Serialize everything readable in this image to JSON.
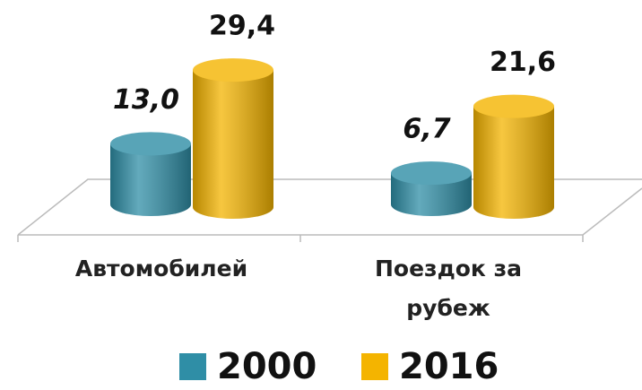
{
  "chart_data": {
    "type": "bar3d-cylinder",
    "categories": [
      "Автомобилей",
      "Поездок за рубеж"
    ],
    "series": [
      {
        "name": "2000",
        "color": "#2f8ea6",
        "values": [
          13.0,
          6.7
        ],
        "value_labels": [
          "13,0",
          "6,7"
        ]
      },
      {
        "name": "2016",
        "color": "#f4b400",
        "values": [
          29.4,
          21.6
        ],
        "value_labels": [
          "29,4",
          "21,6"
        ]
      }
    ],
    "legend": "bottom"
  }
}
